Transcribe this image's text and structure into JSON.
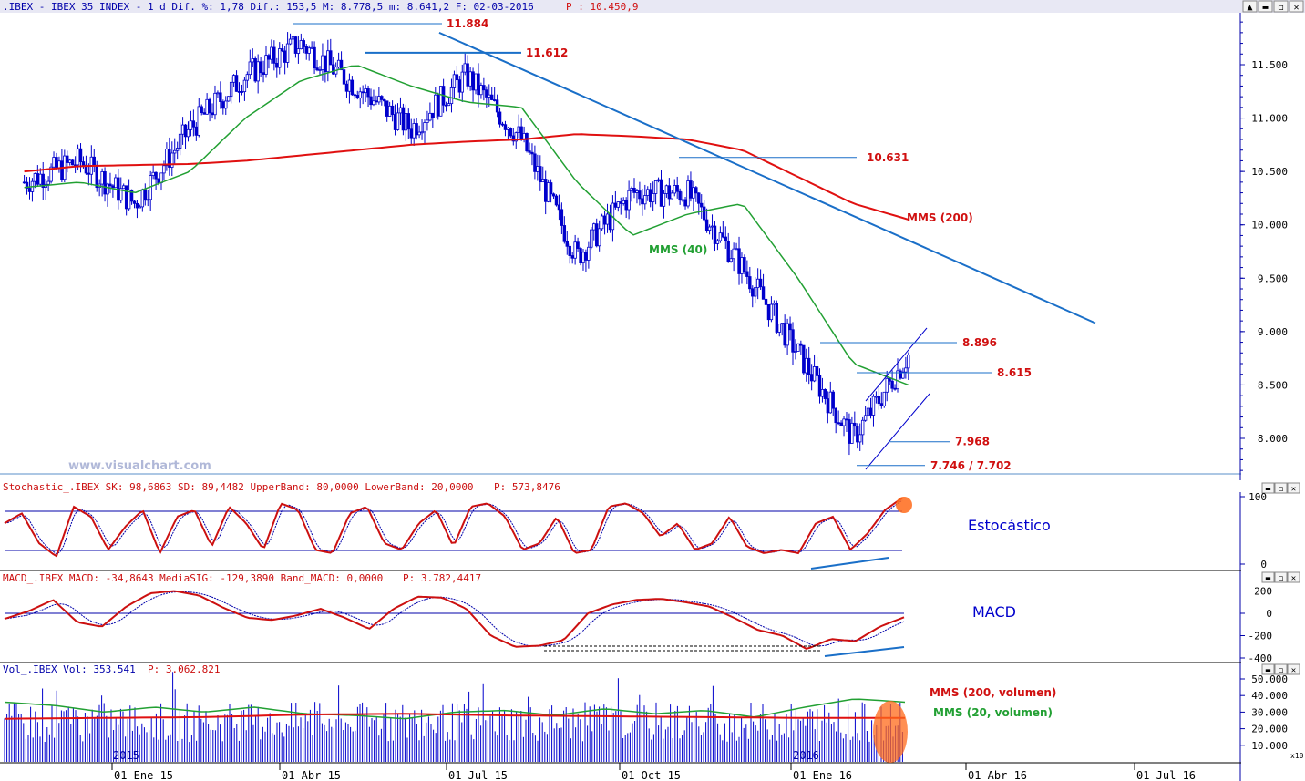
{
  "colors": {
    "candles": "#0000cc",
    "sma40": "#22a033",
    "sma200": "#e01010",
    "trend": "#1a6fc8",
    "level_label": "#d01010",
    "axis": "#0000aa",
    "header_bg": "#e8e8f4",
    "stoch_k": "#cc1010",
    "stoch_d": "#0000aa",
    "volume": "#0000cc",
    "highlight": "#ff6a1a"
  },
  "window": {
    "controls": [
      "▲",
      "▬",
      "◻",
      "✕"
    ],
    "indicator_controls": [
      "▬",
      "◻",
      "✕"
    ],
    "scale_badge": "x10"
  },
  "price_panel": {
    "header": ".IBEX - IBEX 35 INDEX -  1 d Dif. %: 1,78 Dif.: 153,5 M: 8.778,5 m: 8.641,2 F: 02-03-2016 ",
    "header_p": "P : 10.450,9",
    "watermark": "www.visualchart.com",
    "y_ticks": [
      "11.500",
      "11.000",
      "10.500",
      "10.000",
      "9.500",
      "9.000",
      "8.500",
      "8.000"
    ],
    "levels": [
      {
        "label": "11.884",
        "value": 11884
      },
      {
        "label": "11.612",
        "value": 11612
      },
      {
        "label": "10.631",
        "value": 10631
      },
      {
        "label": "8.896",
        "value": 8896
      },
      {
        "label": "8.615",
        "value": 8615
      },
      {
        "label": "7.968",
        "value": 7968
      },
      {
        "label": "7.746 / 7.702",
        "value": 7746
      }
    ],
    "sma40_label": "MMS (40)",
    "sma200_label": "MMS (200)"
  },
  "stoch_panel": {
    "header": "Stochastic_.IBEX SK: 98,6863 SD: 89,4482 UpperBand: 80,0000 LowerBand: 20,0000 ",
    "header_p": "P: 573,8476",
    "y_ticks": [
      "100",
      "0"
    ],
    "title": "Estocástico"
  },
  "macd_panel": {
    "header": "MACD_.IBEX MACD: -34,8643 MediaSIG: -129,3890 Band_MACD: 0,0000 ",
    "header_p": "P: 3.782,4417",
    "y_ticks": [
      "200",
      "0",
      "-200",
      "-400"
    ],
    "title": "MACD"
  },
  "vol_panel": {
    "header": "Vol_.IBEX Vol: 353.541 ",
    "header_p": "P: 3.062.821",
    "y_ticks": [
      "50.000",
      "40.000",
      "30.000",
      "20.000",
      "10.000"
    ],
    "sma200_label": "MMS (200, volumen)",
    "sma20_label": "MMS (20, volumen)",
    "year_labels": [
      "2015",
      "2016"
    ]
  },
  "x_axis": {
    "labels": [
      "01-Ene-15",
      "01-Abr-15",
      "01-Jul-15",
      "01-Oct-15",
      "01-Ene-16",
      "01-Abr-16",
      "01-Jul-16"
    ]
  },
  "chart_data": {
    "type": "line",
    "title": ".IBEX - IBEX 35 INDEX",
    "x": [
      "2014-11",
      "2014-12",
      "2015-01",
      "2015-02",
      "2015-03",
      "2015-04",
      "2015-05",
      "2015-06",
      "2015-07",
      "2015-08",
      "2015-09",
      "2015-10",
      "2015-11",
      "2015-12",
      "2016-01",
      "2016-02",
      "2016-03-02"
    ],
    "series": [
      {
        "name": "IBEX",
        "values": [
          10400,
          10600,
          10200,
          10900,
          11400,
          11700,
          11300,
          10900,
          11400,
          10800,
          9700,
          10300,
          10300,
          9600,
          8800,
          8000,
          8778
        ]
      },
      {
        "name": "MMS (40)",
        "values": [
          10350,
          10400,
          10300,
          10500,
          11000,
          11350,
          11500,
          11300,
          11150,
          11100,
          10400,
          9900,
          10100,
          10200,
          9500,
          8700,
          8500
        ]
      },
      {
        "name": "MMS (200)",
        "values": [
          10500,
          10550,
          10560,
          10570,
          10600,
          10650,
          10700,
          10750,
          10780,
          10800,
          10850,
          10830,
          10800,
          10700,
          10450,
          10200,
          10050
        ]
      }
    ],
    "ylim": [
      7600,
      11950
    ],
    "trendline": {
      "from": {
        "x": "2015-06-25",
        "y": 11800
      },
      "to": {
        "x": "2016-06-10",
        "y": 9080
      }
    },
    "stochastic": {
      "k_last": 98.6863,
      "d_last": 89.4482,
      "upper": 80,
      "lower": 20
    },
    "macd": {
      "macd_last": -34.8643,
      "signal_last": -129.389,
      "band": 0
    },
    "volume": {
      "last": 353541
    }
  }
}
